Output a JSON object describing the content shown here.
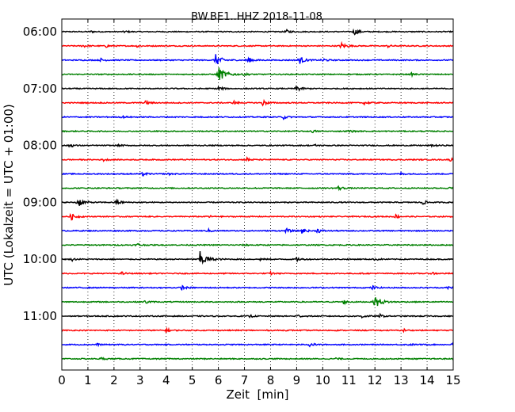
{
  "chart_data": {
    "type": "line",
    "title": "BW.BE1..HHZ 2018-11-08",
    "xlabel": "Zeit  [min]",
    "ylabel": "UTC (Lokalzeit = UTC + 01:00)",
    "xlim": [
      0,
      15
    ],
    "x_ticks": [
      "0",
      "1",
      "2",
      "3",
      "4",
      "5",
      "6",
      "7",
      "8",
      "9",
      "10",
      "11",
      "12",
      "13",
      "14",
      "15"
    ],
    "y_tick_labels": [
      "06:00",
      "07:00",
      "08:00",
      "09:00",
      "10:00",
      "11:00"
    ],
    "grid": "vertical dotted",
    "row_colors": [
      "#000000",
      "#ff0000",
      "#0000ff",
      "#008000"
    ],
    "series": [
      {
        "start": "06:00",
        "events": [
          [
            1.1,
            0.15
          ],
          [
            2.4,
            0.15
          ],
          [
            8.6,
            0.3
          ],
          [
            11.2,
            0.5
          ]
        ]
      },
      {
        "start": "06:15",
        "events": [
          [
            0.8,
            0.25
          ],
          [
            1.7,
            0.2
          ],
          [
            2.9,
            0.25
          ],
          [
            10.7,
            0.55
          ],
          [
            12.5,
            0.2
          ]
        ]
      },
      {
        "start": "06:30",
        "events": [
          [
            1.5,
            0.25
          ],
          [
            5.9,
            0.9
          ],
          [
            7.1,
            0.5
          ],
          [
            9.1,
            0.6
          ],
          [
            10.0,
            0.3
          ]
        ]
      },
      {
        "start": "06:45",
        "events": [
          [
            6.0,
            1.2
          ],
          [
            7.0,
            0.2
          ],
          [
            13.4,
            0.2
          ]
        ]
      },
      {
        "start": "07:00",
        "events": [
          [
            6.0,
            0.35
          ],
          [
            9.0,
            0.45
          ]
        ]
      },
      {
        "start": "07:15",
        "events": [
          [
            3.2,
            0.3
          ],
          [
            6.6,
            0.25
          ],
          [
            7.7,
            0.45
          ],
          [
            11.6,
            0.3
          ]
        ]
      },
      {
        "start": "07:30",
        "events": [
          [
            2.3,
            0.15
          ],
          [
            8.5,
            0.3
          ]
        ]
      },
      {
        "start": "07:45",
        "events": [
          [
            9.6,
            0.2
          ],
          [
            11.0,
            0.2
          ]
        ]
      },
      {
        "start": "08:00",
        "events": [
          [
            0.3,
            0.3
          ],
          [
            2.2,
            0.15
          ],
          [
            9.7,
            0.15
          ],
          [
            14.2,
            0.2
          ]
        ]
      },
      {
        "start": "08:15",
        "events": [
          [
            1.6,
            0.2
          ],
          [
            7.1,
            0.3
          ],
          [
            14.9,
            0.3
          ]
        ]
      },
      {
        "start": "08:30",
        "events": [
          [
            3.1,
            0.3
          ],
          [
            4.1,
            0.15
          ],
          [
            13.0,
            0.2
          ]
        ]
      },
      {
        "start": "08:45",
        "events": [
          [
            10.6,
            0.35
          ],
          [
            14.9,
            0.25
          ]
        ]
      },
      {
        "start": "09:00",
        "events": [
          [
            0.6,
            0.8
          ],
          [
            2.1,
            0.4
          ],
          [
            13.8,
            0.4
          ]
        ]
      },
      {
        "start": "09:15",
        "events": [
          [
            0.35,
            0.55
          ],
          [
            5.6,
            0.2
          ],
          [
            12.8,
            0.3
          ]
        ]
      },
      {
        "start": "09:30",
        "events": [
          [
            5.6,
            0.25
          ],
          [
            8.6,
            0.35
          ],
          [
            9.2,
            0.4
          ],
          [
            9.8,
            0.35
          ]
        ]
      },
      {
        "start": "09:45",
        "events": [
          [
            2.9,
            0.3
          ],
          [
            7.0,
            0.15
          ]
        ]
      },
      {
        "start": "10:00",
        "events": [
          [
            0.4,
            0.2
          ],
          [
            5.3,
            1.2
          ],
          [
            7.6,
            0.15
          ],
          [
            9.0,
            0.3
          ],
          [
            12.0,
            0.2
          ]
        ]
      },
      {
        "start": "10:15",
        "events": [
          [
            2.3,
            0.2
          ],
          [
            8.0,
            0.2
          ],
          [
            14.2,
            0.2
          ]
        ]
      },
      {
        "start": "10:30",
        "events": [
          [
            4.6,
            0.35
          ],
          [
            11.9,
            0.3
          ],
          [
            14.8,
            0.2
          ]
        ]
      },
      {
        "start": "10:45",
        "events": [
          [
            3.2,
            0.3
          ],
          [
            10.8,
            0.3
          ],
          [
            12.0,
            1.0
          ]
        ]
      },
      {
        "start": "11:00",
        "events": [
          [
            7.2,
            0.2
          ],
          [
            9.0,
            0.25
          ],
          [
            11.5,
            0.3
          ],
          [
            12.2,
            0.25
          ]
        ]
      },
      {
        "start": "11:15",
        "events": [
          [
            4.0,
            0.3
          ],
          [
            13.1,
            0.2
          ]
        ]
      },
      {
        "start": "11:30",
        "events": [
          [
            1.3,
            0.2
          ],
          [
            9.5,
            0.3
          ],
          [
            13.3,
            0.2
          ],
          [
            15.0,
            0.4
          ]
        ]
      },
      {
        "start": "11:45",
        "events": [
          [
            1.5,
            0.2
          ],
          [
            10.5,
            0.15
          ]
        ]
      }
    ]
  }
}
